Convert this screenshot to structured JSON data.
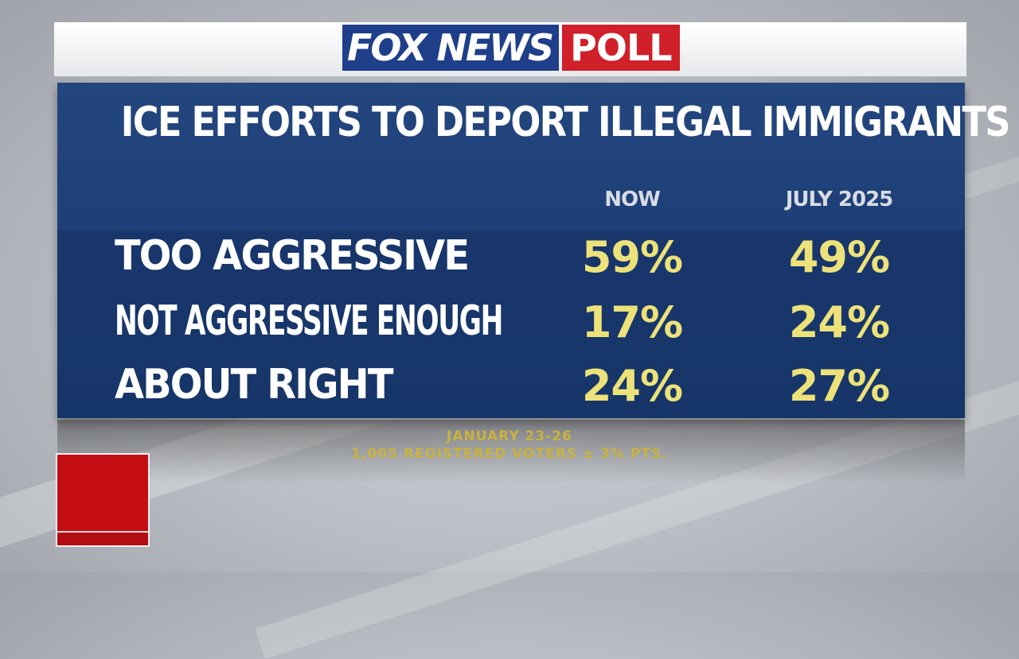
{
  "logo": {
    "brand": "FOX NEWS",
    "badge": "POLL"
  },
  "title": "ICE EFFORTS TO DEPORT ILLEGAL IMMIGRANTS",
  "columns": [
    "NOW",
    "JULY 2025"
  ],
  "rows": [
    {
      "label": "TOO AGGRESSIVE",
      "now": "59%",
      "july_2025": "49%"
    },
    {
      "label": "NOT AGGRESSIVE ENOUGH",
      "now": "17%",
      "july_2025": "24%"
    },
    {
      "label": "ABOUT RIGHT",
      "now": "24%",
      "july_2025": "27%"
    }
  ],
  "footer": {
    "dates": "JANUARY 23-26",
    "sample": "1,005 REGISTERED VOTERS ± 3% PTS."
  },
  "colors": {
    "panel": "#1b3c74",
    "value": "#ede27a",
    "poll_badge": "#d0202a"
  },
  "corner_box": {
    "label": ""
  }
}
